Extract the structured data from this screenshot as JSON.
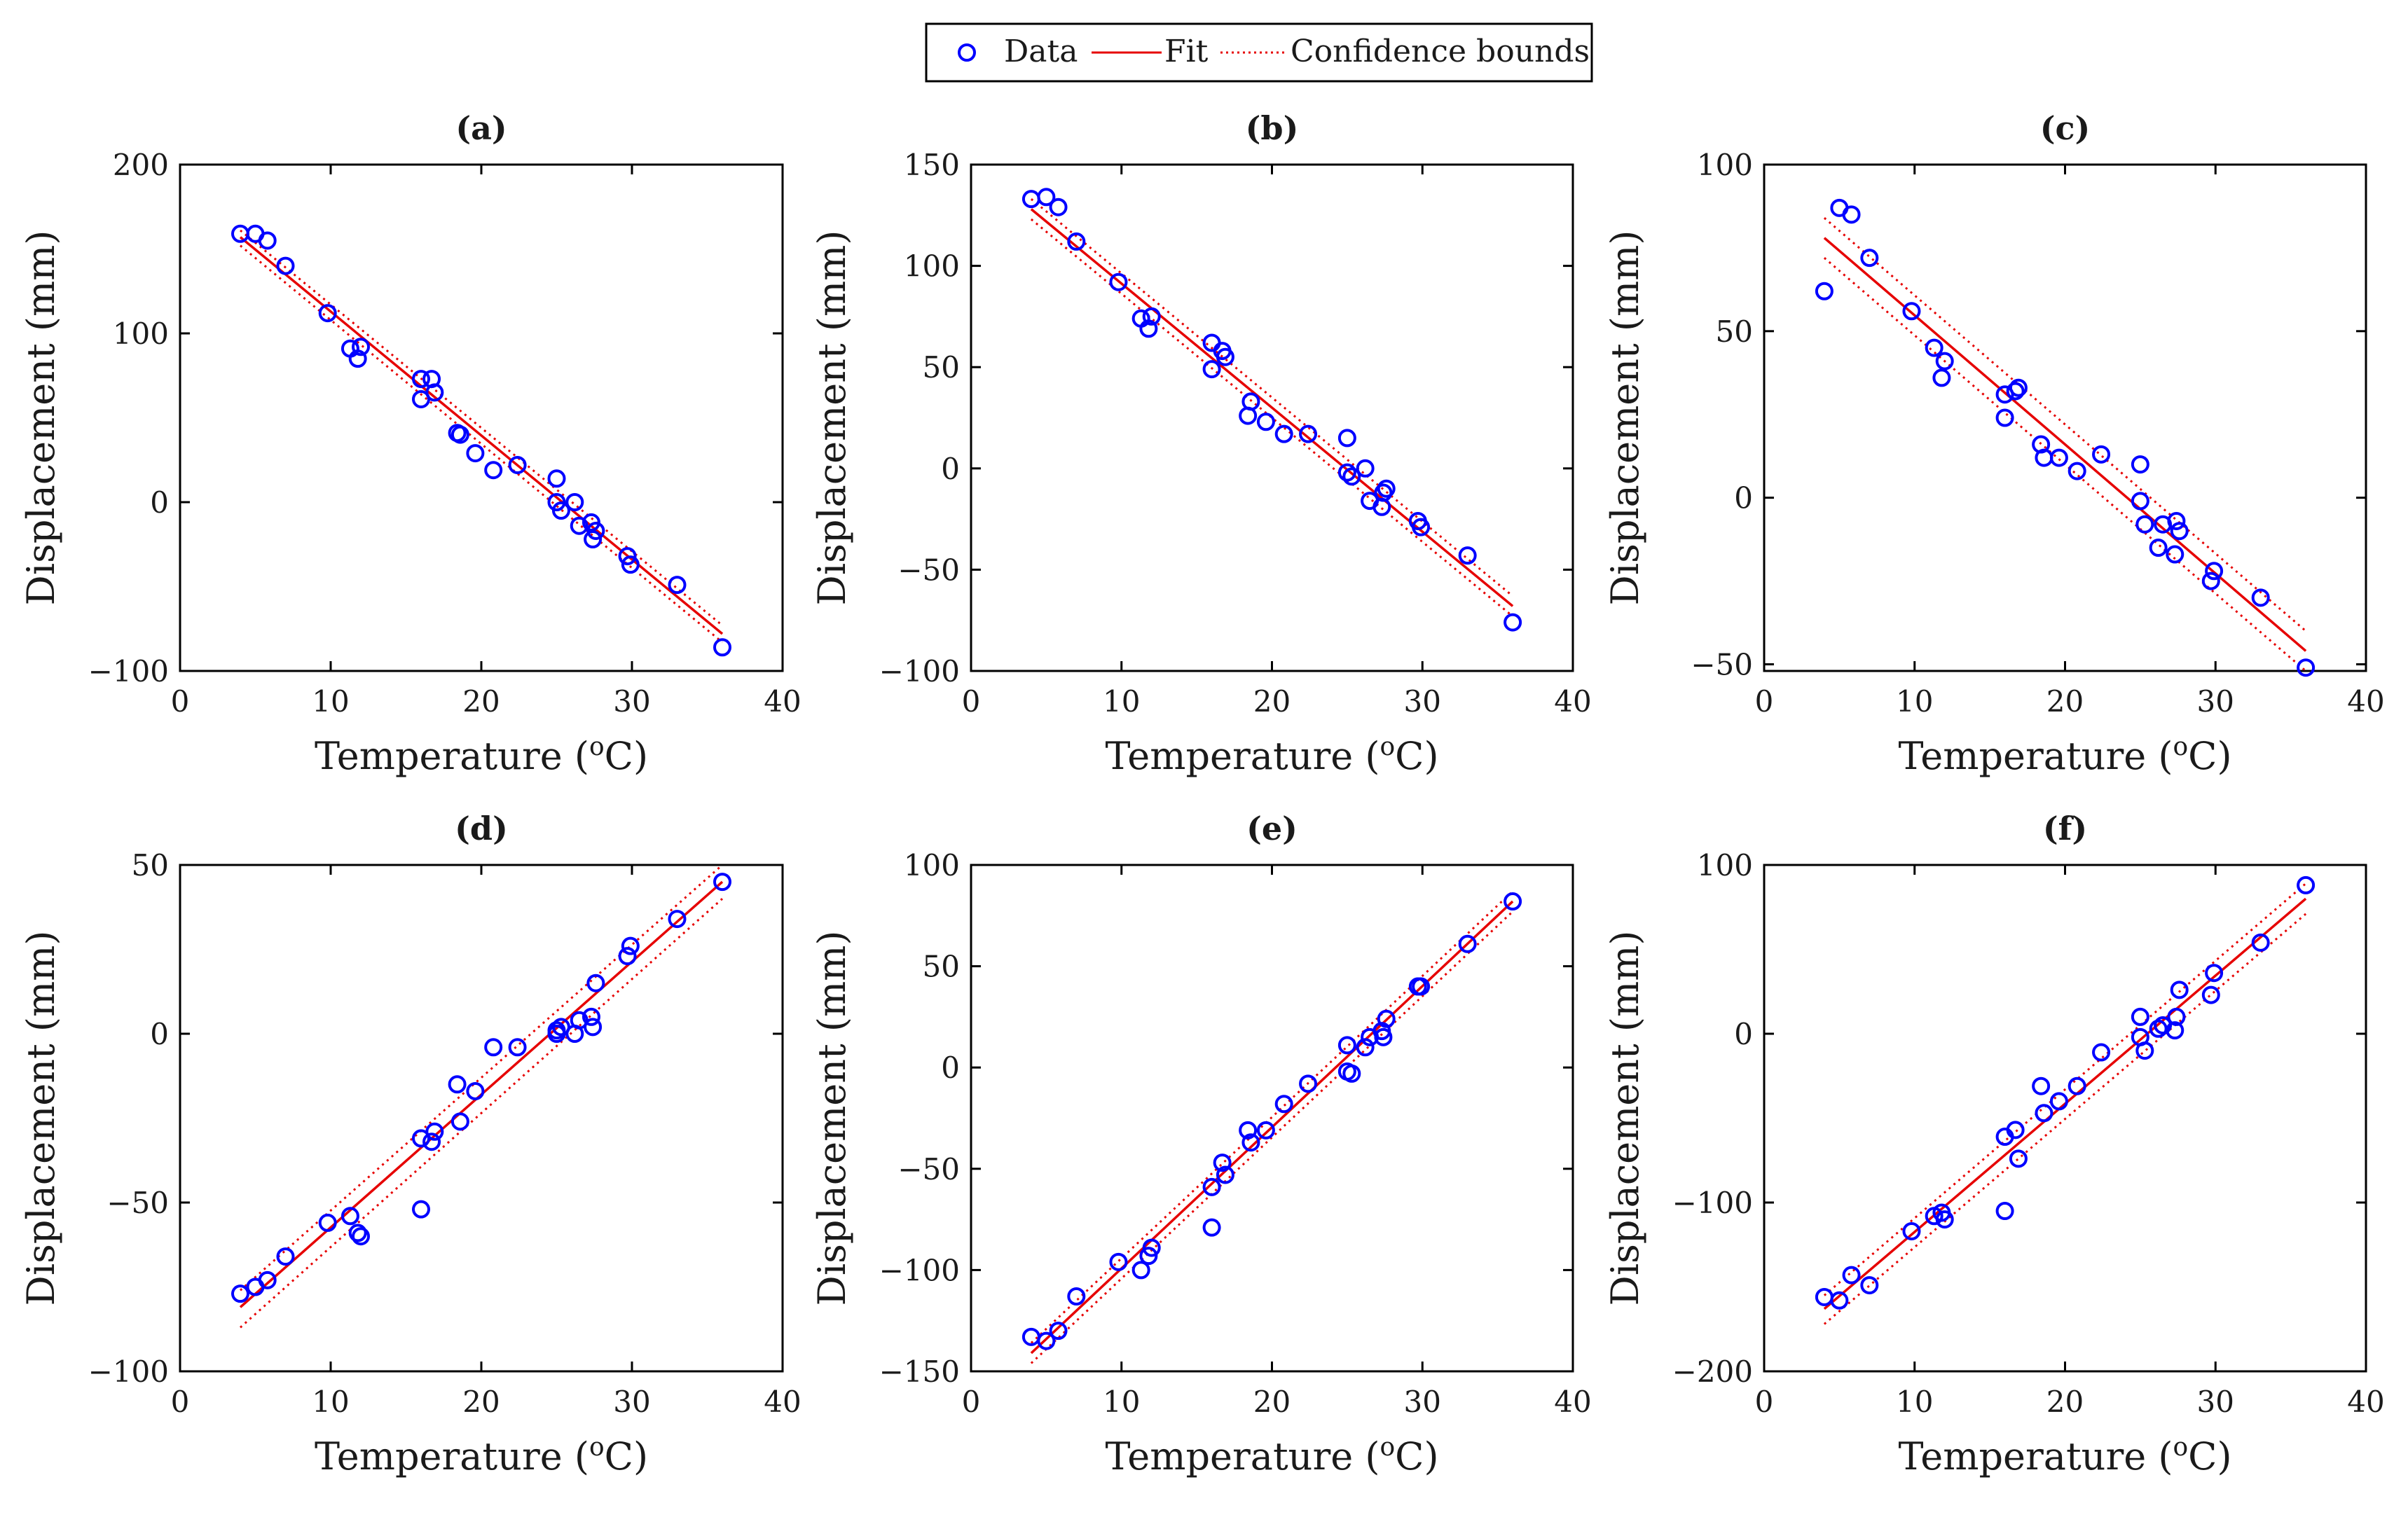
{
  "legend": {
    "entries": [
      {
        "label": "Data",
        "kind": "marker"
      },
      {
        "label": "Fit",
        "kind": "line"
      },
      {
        "label": "Confidence bounds",
        "kind": "dotted"
      }
    ]
  },
  "colors": {
    "data": "#0000ff",
    "fit": "#e60000",
    "bounds": "#e60000",
    "axis": "#000000"
  },
  "chart_data": [
    {
      "panel": "(a)",
      "type": "scatter",
      "xlabel": "Temperature (",
      "xlabel_sup": "o",
      "xlabel_tail": "C)",
      "ylabel": "Displacement (mm)",
      "xlim": [
        0,
        40
      ],
      "ylim": [
        -100,
        200
      ],
      "xticks": [
        0,
        10,
        20,
        30,
        40
      ],
      "yticks": [
        -100,
        0,
        100,
        200
      ],
      "xtick_labels": [
        "0",
        "10",
        "20",
        "30",
        "40"
      ],
      "ytick_labels": [
        "−100",
        "0",
        "100",
        "200"
      ],
      "fit": {
        "x": [
          4,
          36
        ],
        "y": [
          157,
          -78
        ]
      },
      "bounds_upper": {
        "x": [
          4,
          36
        ],
        "y": [
          161,
          -73
        ]
      },
      "bounds_lower": {
        "x": [
          4,
          36
        ],
        "y": [
          152,
          -83
        ]
      },
      "points": [
        [
          4,
          159
        ],
        [
          5,
          159
        ],
        [
          5.8,
          155
        ],
        [
          7,
          140
        ],
        [
          9.8,
          112
        ],
        [
          11.3,
          91
        ],
        [
          11.8,
          85
        ],
        [
          12,
          92
        ],
        [
          16,
          73
        ],
        [
          16,
          61
        ],
        [
          16.7,
          73
        ],
        [
          16.9,
          65
        ],
        [
          18.4,
          41
        ],
        [
          18.6,
          40
        ],
        [
          19.6,
          29
        ],
        [
          20.8,
          19
        ],
        [
          22.4,
          22
        ],
        [
          25,
          14
        ],
        [
          25,
          0
        ],
        [
          25.3,
          -5
        ],
        [
          26.2,
          0
        ],
        [
          26.5,
          -14
        ],
        [
          27.3,
          -12
        ],
        [
          27.4,
          -22
        ],
        [
          27.6,
          -17
        ],
        [
          29.7,
          -32
        ],
        [
          29.9,
          -37
        ],
        [
          33,
          -49
        ],
        [
          36,
          -86
        ]
      ]
    },
    {
      "panel": "(b)",
      "type": "scatter",
      "xlabel": "Temperature (",
      "xlabel_sup": "o",
      "xlabel_tail": "C)",
      "ylabel": "Displacement (mm)",
      "xlim": [
        0,
        40
      ],
      "ylim": [
        -100,
        150
      ],
      "xticks": [
        0,
        10,
        20,
        30,
        40
      ],
      "yticks": [
        -100,
        -50,
        0,
        50,
        100,
        150
      ],
      "xtick_labels": [
        "0",
        "10",
        "20",
        "30",
        "40"
      ],
      "ytick_labels": [
        "−100",
        "−50",
        "0",
        "50",
        "100",
        "150"
      ],
      "fit": {
        "x": [
          4,
          36
        ],
        "y": [
          128,
          -68
        ]
      },
      "bounds_upper": {
        "x": [
          4,
          36
        ],
        "y": [
          133,
          -63
        ]
      },
      "bounds_lower": {
        "x": [
          4,
          36
        ],
        "y": [
          123,
          -73
        ]
      },
      "points": [
        [
          4,
          133
        ],
        [
          5,
          134
        ],
        [
          5.8,
          129
        ],
        [
          7,
          112
        ],
        [
          9.8,
          92
        ],
        [
          11.3,
          74
        ],
        [
          11.8,
          69
        ],
        [
          12,
          75
        ],
        [
          16,
          62
        ],
        [
          16,
          49
        ],
        [
          16.7,
          58
        ],
        [
          16.9,
          55
        ],
        [
          18.4,
          26
        ],
        [
          18.6,
          33
        ],
        [
          19.6,
          23
        ],
        [
          20.8,
          17
        ],
        [
          22.4,
          17
        ],
        [
          25,
          15
        ],
        [
          25,
          -2
        ],
        [
          25.3,
          -4
        ],
        [
          26.2,
          0
        ],
        [
          26.5,
          -16
        ],
        [
          27.3,
          -19
        ],
        [
          27.4,
          -12
        ],
        [
          27.6,
          -10
        ],
        [
          29.7,
          -26
        ],
        [
          29.9,
          -29
        ],
        [
          33,
          -43
        ],
        [
          36,
          -76
        ]
      ]
    },
    {
      "panel": "(c)",
      "type": "scatter",
      "xlabel": "Temperature (",
      "xlabel_sup": "o",
      "xlabel_tail": "C)",
      "ylabel": "Displacement (mm)",
      "xlim": [
        0,
        40
      ],
      "ylim": [
        -52,
        100
      ],
      "xticks": [
        0,
        10,
        20,
        30,
        40
      ],
      "yticks": [
        -50,
        0,
        50,
        100
      ],
      "xtick_labels": [
        "0",
        "10",
        "20",
        "30",
        "40"
      ],
      "ytick_labels": [
        "−50",
        "0",
        "50",
        "100"
      ],
      "fit": {
        "x": [
          4,
          36
        ],
        "y": [
          78,
          -46
        ]
      },
      "bounds_upper": {
        "x": [
          4,
          36
        ],
        "y": [
          84,
          -40
        ]
      },
      "bounds_lower": {
        "x": [
          4,
          36
        ],
        "y": [
          72,
          -52
        ]
      },
      "points": [
        [
          4,
          62
        ],
        [
          5,
          87
        ],
        [
          5.8,
          85
        ],
        [
          7,
          72
        ],
        [
          9.8,
          56
        ],
        [
          11.3,
          45
        ],
        [
          11.8,
          36
        ],
        [
          12,
          41
        ],
        [
          16,
          31
        ],
        [
          16,
          24
        ],
        [
          16.7,
          32
        ],
        [
          16.9,
          33
        ],
        [
          18.4,
          16
        ],
        [
          18.6,
          12
        ],
        [
          19.6,
          12
        ],
        [
          20.8,
          8
        ],
        [
          22.4,
          13
        ],
        [
          25,
          10
        ],
        [
          25,
          -1
        ],
        [
          25.3,
          -8
        ],
        [
          26.2,
          -15
        ],
        [
          26.5,
          -8
        ],
        [
          27.3,
          -17
        ],
        [
          27.4,
          -7
        ],
        [
          27.6,
          -10
        ],
        [
          29.7,
          -25
        ],
        [
          29.9,
          -22
        ],
        [
          33,
          -30
        ],
        [
          36,
          -51
        ]
      ]
    },
    {
      "panel": "(d)",
      "type": "scatter",
      "xlabel": "Temperature (",
      "xlabel_sup": "o",
      "xlabel_tail": "C)",
      "ylabel": "Displacement (mm)",
      "xlim": [
        0,
        40
      ],
      "ylim": [
        -100,
        50
      ],
      "xticks": [
        0,
        10,
        20,
        30,
        40
      ],
      "yticks": [
        -100,
        -50,
        0,
        50
      ],
      "xtick_labels": [
        "0",
        "10",
        "20",
        "30",
        "40"
      ],
      "ytick_labels": [
        "−100",
        "−50",
        "0",
        "50"
      ],
      "fit": {
        "x": [
          4,
          36
        ],
        "y": [
          -81,
          45
        ]
      },
      "bounds_upper": {
        "x": [
          4,
          36
        ],
        "y": [
          -76,
          50
        ]
      },
      "bounds_lower": {
        "x": [
          4,
          36
        ],
        "y": [
          -87,
          40
        ]
      },
      "points": [
        [
          4,
          -77
        ],
        [
          5,
          -75
        ],
        [
          5.8,
          -73
        ],
        [
          7,
          -66
        ],
        [
          9.8,
          -56
        ],
        [
          11.3,
          -54
        ],
        [
          11.8,
          -59
        ],
        [
          12,
          -60
        ],
        [
          16,
          -31
        ],
        [
          16,
          -52
        ],
        [
          16.7,
          -32
        ],
        [
          16.9,
          -29
        ],
        [
          18.4,
          -15
        ],
        [
          18.6,
          -26
        ],
        [
          19.6,
          -17
        ],
        [
          20.8,
          -4
        ],
        [
          22.4,
          -4
        ],
        [
          25,
          0
        ],
        [
          25,
          1
        ],
        [
          25.3,
          2
        ],
        [
          26.2,
          0
        ],
        [
          26.5,
          4
        ],
        [
          27.3,
          5
        ],
        [
          27.4,
          2
        ],
        [
          27.6,
          15
        ],
        [
          29.7,
          23
        ],
        [
          29.9,
          26
        ],
        [
          33,
          34
        ],
        [
          36,
          45
        ]
      ]
    },
    {
      "panel": "(e)",
      "type": "scatter",
      "xlabel": "Temperature (",
      "xlabel_sup": "o",
      "xlabel_tail": "C)",
      "ylabel": "Displacement (mm)",
      "xlim": [
        0,
        40
      ],
      "ylim": [
        -150,
        100
      ],
      "xticks": [
        0,
        10,
        20,
        30,
        40
      ],
      "yticks": [
        -150,
        -100,
        -50,
        0,
        50,
        100
      ],
      "xtick_labels": [
        "0",
        "10",
        "20",
        "30",
        "40"
      ],
      "ytick_labels": [
        "−150",
        "−100",
        "−50",
        "0",
        "50",
        "100"
      ],
      "fit": {
        "x": [
          4,
          36
        ],
        "y": [
          -141,
          82
        ]
      },
      "bounds_upper": {
        "x": [
          4,
          36
        ],
        "y": [
          -136,
          87
        ]
      },
      "bounds_lower": {
        "x": [
          4,
          36
        ],
        "y": [
          -146,
          77
        ]
      },
      "points": [
        [
          4,
          -133
        ],
        [
          5,
          -135
        ],
        [
          5.8,
          -130
        ],
        [
          7,
          -113
        ],
        [
          9.8,
          -96
        ],
        [
          11.3,
          -100
        ],
        [
          11.8,
          -93
        ],
        [
          12,
          -89
        ],
        [
          16,
          -59
        ],
        [
          16,
          -79
        ],
        [
          16.7,
          -47
        ],
        [
          16.9,
          -53
        ],
        [
          18.4,
          -31
        ],
        [
          18.6,
          -37
        ],
        [
          19.6,
          -31
        ],
        [
          20.8,
          -18
        ],
        [
          22.4,
          -8
        ],
        [
          25,
          11
        ],
        [
          25,
          -2
        ],
        [
          25.3,
          -3
        ],
        [
          26.2,
          10
        ],
        [
          26.5,
          15
        ],
        [
          27.3,
          18
        ],
        [
          27.4,
          15
        ],
        [
          27.6,
          24
        ],
        [
          29.7,
          40
        ],
        [
          29.9,
          40
        ],
        [
          33,
          61
        ],
        [
          36,
          82
        ]
      ]
    },
    {
      "panel": "(f)",
      "type": "scatter",
      "xlabel": "Temperature (",
      "xlabel_sup": "o",
      "xlabel_tail": "C)",
      "ylabel": "Displacement (mm)",
      "xlim": [
        0,
        40
      ],
      "ylim": [
        -200,
        100
      ],
      "xticks": [
        0,
        10,
        20,
        30,
        40
      ],
      "yticks": [
        -200,
        -100,
        0,
        100
      ],
      "xtick_labels": [
        "0",
        "10",
        "20",
        "30",
        "40"
      ],
      "ytick_labels": [
        "−200",
        "−100",
        "0",
        "100"
      ],
      "fit": {
        "x": [
          4,
          36
        ],
        "y": [
          -163,
          80
        ]
      },
      "bounds_upper": {
        "x": [
          4,
          36
        ],
        "y": [
          -155,
          89
        ]
      },
      "bounds_lower": {
        "x": [
          4,
          36
        ],
        "y": [
          -172,
          71
        ]
      },
      "points": [
        [
          4,
          -156
        ],
        [
          5,
          -158
        ],
        [
          5.8,
          -143
        ],
        [
          7,
          -149
        ],
        [
          9.8,
          -117
        ],
        [
          11.3,
          -108
        ],
        [
          11.8,
          -106
        ],
        [
          12,
          -110
        ],
        [
          16,
          -105
        ],
        [
          16,
          -61
        ],
        [
          16.7,
          -57
        ],
        [
          16.9,
          -74
        ],
        [
          18.4,
          -31
        ],
        [
          18.6,
          -47
        ],
        [
          19.6,
          -40
        ],
        [
          20.8,
          -31
        ],
        [
          22.4,
          -11
        ],
        [
          25,
          10
        ],
        [
          25,
          -2
        ],
        [
          25.3,
          -10
        ],
        [
          26.2,
          3
        ],
        [
          26.5,
          5
        ],
        [
          27.3,
          2
        ],
        [
          27.4,
          10
        ],
        [
          27.6,
          26
        ],
        [
          29.7,
          23
        ],
        [
          29.9,
          36
        ],
        [
          33,
          54
        ],
        [
          36,
          88
        ]
      ]
    }
  ]
}
